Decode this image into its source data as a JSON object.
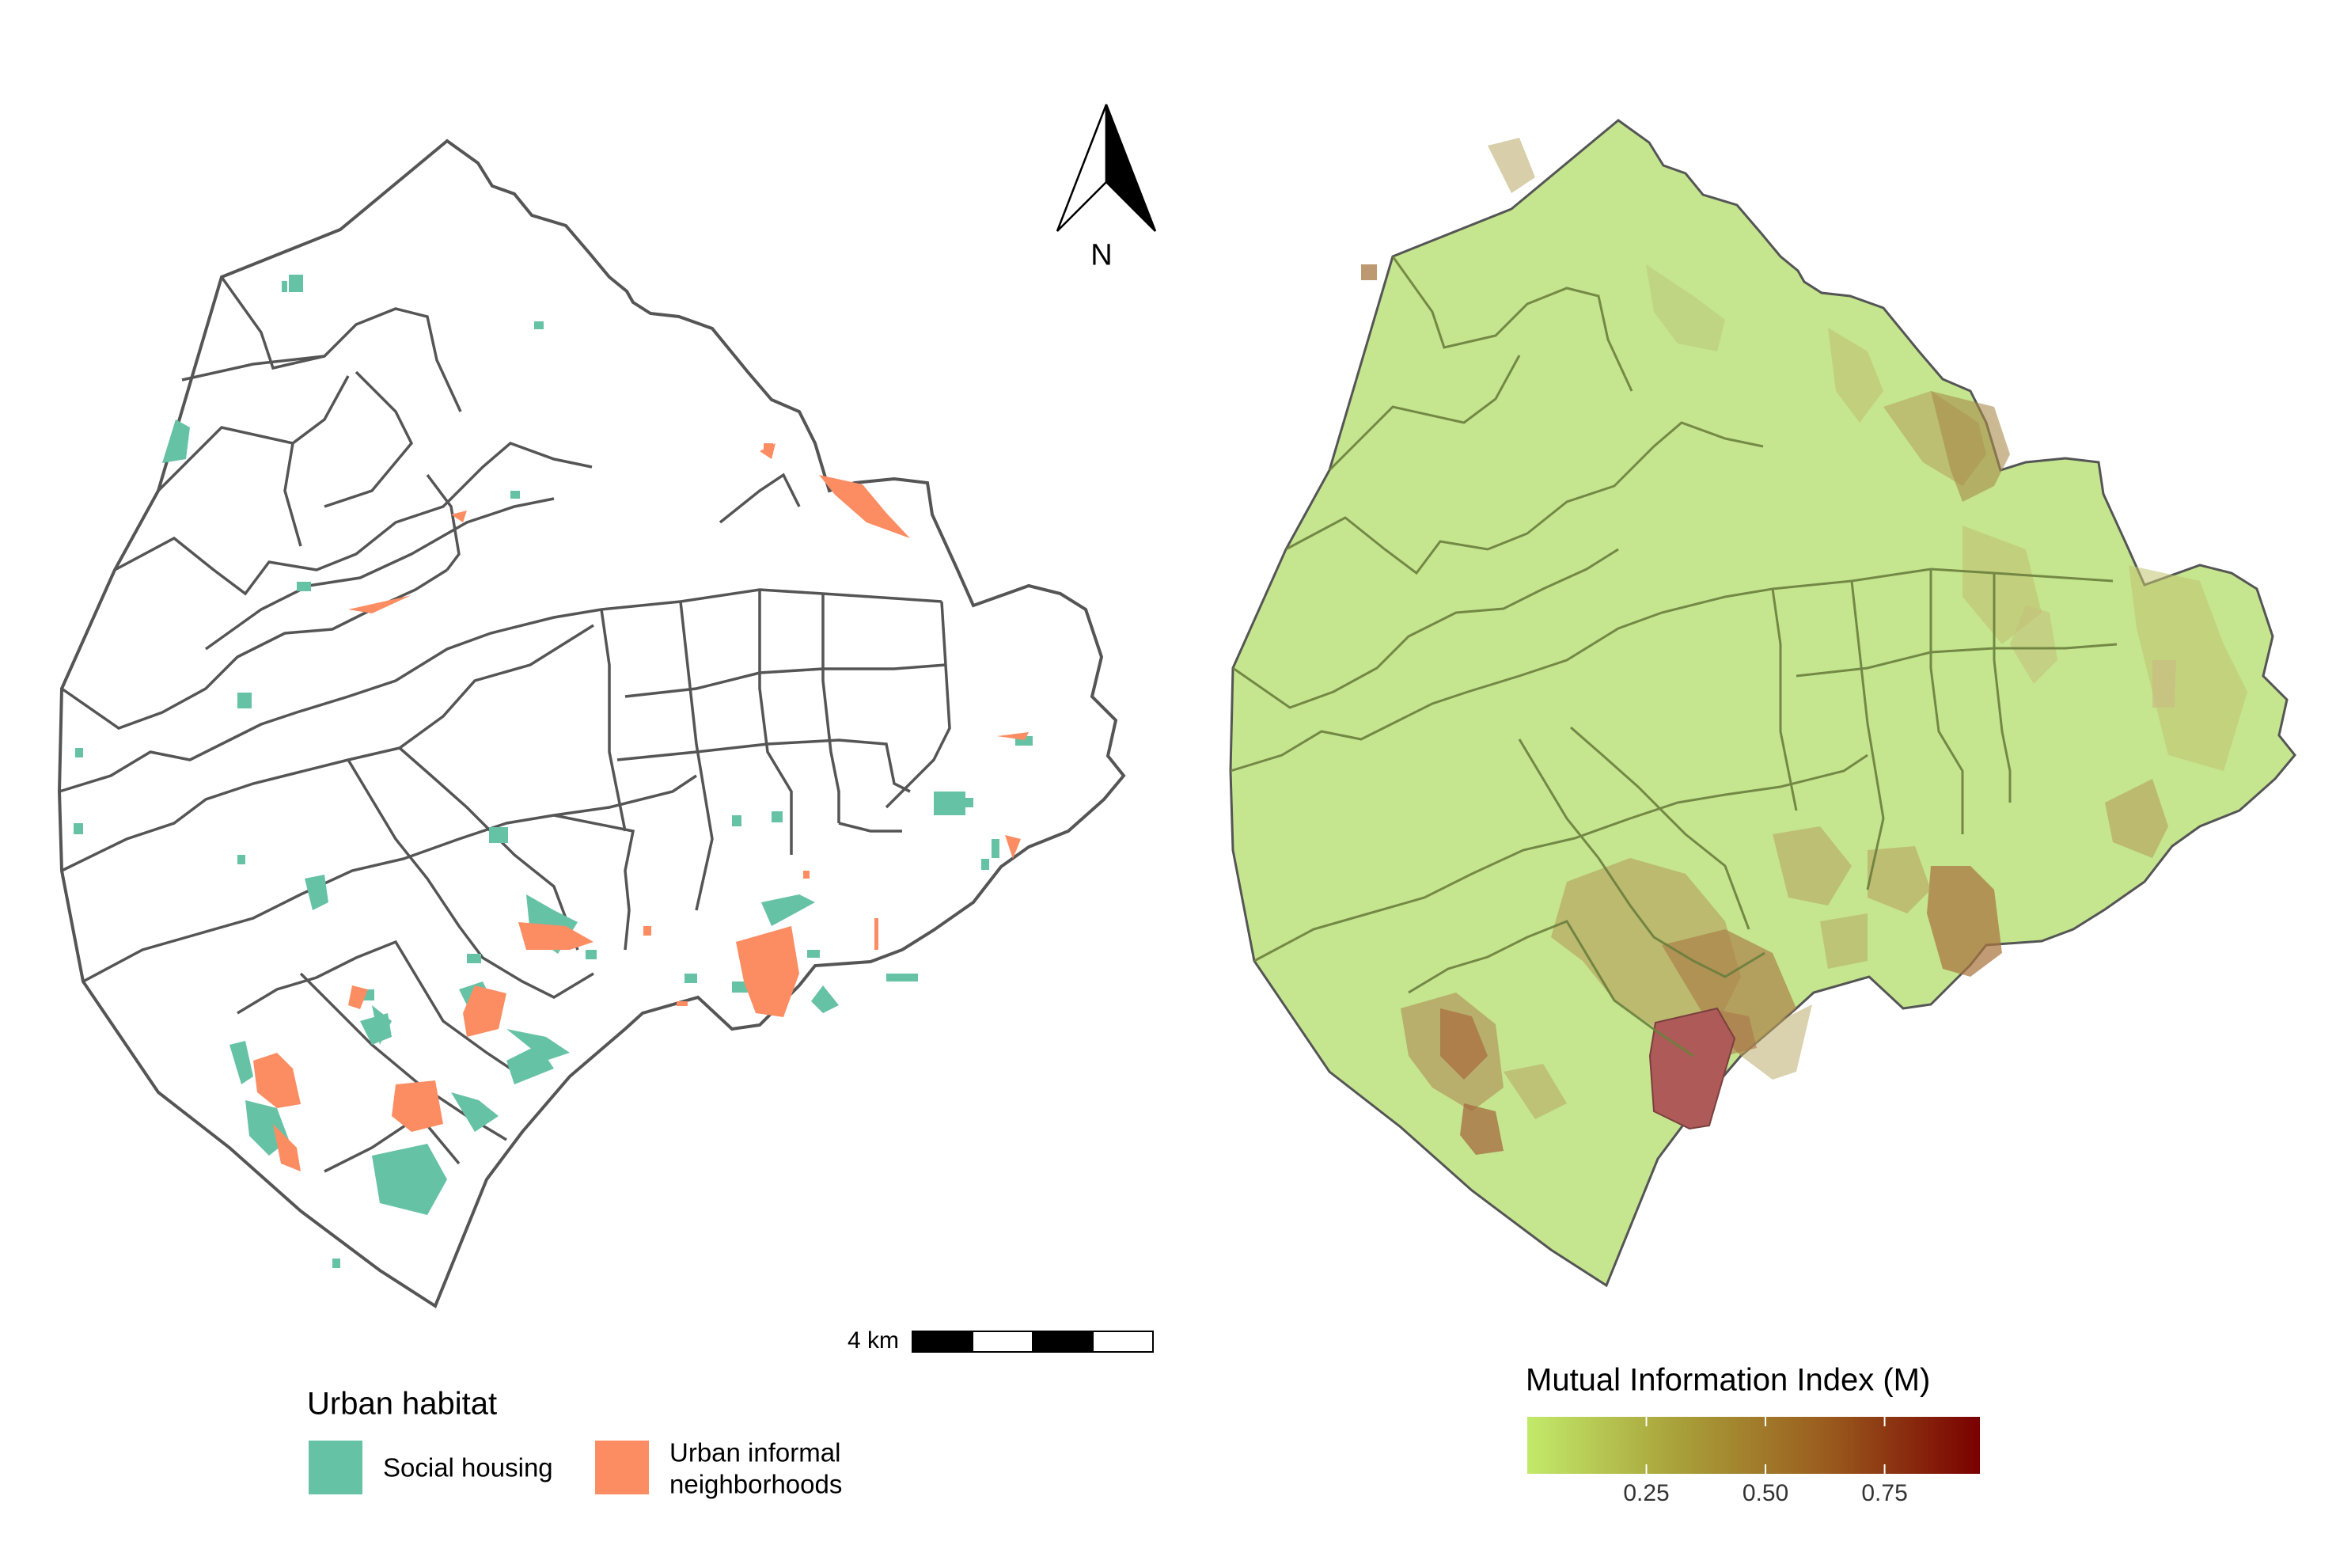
{
  "north_arrow": {
    "label": "N"
  },
  "scale_bar": {
    "label": "4 km"
  },
  "habitat_legend": {
    "title": "Urban habitat",
    "items": [
      {
        "label_lines": [
          "Social housing"
        ],
        "color": "#66c2a5"
      },
      {
        "label_lines": [
          "Urban informal",
          "neighborhoods"
        ],
        "color": "#fc8d62"
      }
    ]
  },
  "mi_legend": {
    "title": "Mutual Information Index (M)",
    "gradient": [
      "#c2ea6a",
      "#a9a13a",
      "#9a5c1e",
      "#7a0000"
    ],
    "domain": [
      0,
      0.95
    ],
    "ticks": [
      {
        "value": 0.25,
        "label": "0.25"
      },
      {
        "value": 0.5,
        "label": "0.50"
      },
      {
        "value": 0.75,
        "label": "0.75"
      }
    ]
  },
  "colors": {
    "boundary": "#555555",
    "base_fill": "#c5e58f",
    "mid_fill": "#b6a35e",
    "high_fill": "#ad5a58"
  }
}
